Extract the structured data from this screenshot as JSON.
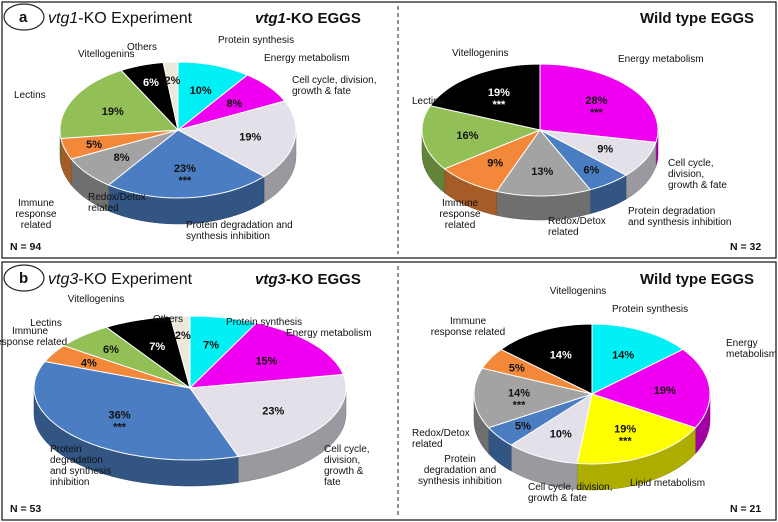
{
  "panels": [
    {
      "letter": "a",
      "experiment_italic": "vtg1",
      "experiment_rest": "-KO Experiment",
      "charts_title_left_italic": "vtg1",
      "charts_title_left_rest": "-KO EGGS",
      "charts_title_right": "Wild type  EGGS",
      "n_left": "N = 94",
      "n_right": "N = 32"
    },
    {
      "letter": "b",
      "experiment_italic": "vtg3",
      "experiment_rest": "-KO Experiment",
      "charts_title_left_italic": "vtg3",
      "charts_title_left_rest": "-KO EGGS",
      "charts_title_right": "Wild type  EGGS",
      "n_left": "N = 53",
      "n_right": "N = 21"
    }
  ],
  "colors": {
    "protein_synthesis": "#00f0f5",
    "energy_metabolism": "#f000f0",
    "cell_cycle": "#e4e0ea",
    "protein_degradation": "#4a7dc2",
    "redox_detox": "#a3a3a3",
    "immune": "#f3883a",
    "lectins": "#92bf56",
    "vitellogenins": "#000000",
    "others": "#ece9da",
    "lipid_metabolism": "#ffff00"
  },
  "chart_data": [
    {
      "type": "pie",
      "title": "vtg1-KO EGGS",
      "slices": [
        {
          "key": "protein_synthesis",
          "value": 10,
          "label": "10%",
          "category": "Protein synthesis"
        },
        {
          "key": "energy_metabolism",
          "value": 8,
          "label": "8%",
          "category": "Energy metabolism"
        },
        {
          "key": "cell_cycle",
          "value": 19,
          "label": "19%",
          "category": "Cell cycle, division, growth & fate"
        },
        {
          "key": "protein_degradation",
          "value": 23,
          "label": "23%",
          "mark": "***",
          "category": "Protein degradation and synthesis inhibition"
        },
        {
          "key": "redox_detox",
          "value": 8,
          "label": "8%",
          "category": "Redox/Detox related"
        },
        {
          "key": "immune",
          "value": 5,
          "label": "5%",
          "category": "Immune response related"
        },
        {
          "key": "lectins",
          "value": 19,
          "label": "19%",
          "category": "Lectins"
        },
        {
          "key": "vitellogenins",
          "value": 6,
          "label": "6%",
          "category": "Vitellogenins"
        },
        {
          "key": "others",
          "value": 2,
          "label": "2%",
          "category": "Others"
        }
      ]
    },
    {
      "type": "pie",
      "title": "Wild type  EGGS",
      "slices": [
        {
          "key": "energy_metabolism",
          "value": 28,
          "label": "28%",
          "mark": "***",
          "category": "Energy metabolism"
        },
        {
          "key": "cell_cycle",
          "value": 9,
          "label": "9%",
          "category": "Cell cycle, division, growth & fate"
        },
        {
          "key": "protein_degradation",
          "value": 6,
          "label": "6%",
          "category": "Protein degradation and synthesis inhibition"
        },
        {
          "key": "redox_detox",
          "value": 13,
          "label": "13%",
          "category": "Redox/Detox related"
        },
        {
          "key": "immune",
          "value": 9,
          "label": "9%",
          "category": "Immune response related"
        },
        {
          "key": "lectins",
          "value": 16,
          "label": "16%",
          "category": "Lectins"
        },
        {
          "key": "vitellogenins",
          "value": 19,
          "label": "19%",
          "mark": "***",
          "category": "Vitellogenins"
        }
      ]
    },
    {
      "type": "pie",
      "title": "vtg3-KO EGGS",
      "slices": [
        {
          "key": "protein_synthesis",
          "value": 7,
          "label": "7%",
          "category": "Protein synthesis"
        },
        {
          "key": "energy_metabolism",
          "value": 15,
          "label": "15%",
          "category": "Energy metabolism"
        },
        {
          "key": "cell_cycle",
          "value": 23,
          "label": "23%",
          "category": "Cell cycle, division, growth & fate"
        },
        {
          "key": "protein_degradation",
          "value": 36,
          "label": "36%",
          "mark": "***",
          "category": "Protein degradation and synthesis inhibition"
        },
        {
          "key": "immune",
          "value": 4,
          "label": "4%",
          "category": "Immune response related"
        },
        {
          "key": "lectins",
          "value": 6,
          "label": "6%",
          "category": "Lectins"
        },
        {
          "key": "vitellogenins",
          "value": 7,
          "label": "7%",
          "category": "Vitellogenins"
        },
        {
          "key": "others",
          "value": 2,
          "label": "2%",
          "category": "Others"
        }
      ]
    },
    {
      "type": "pie",
      "title": "Wild type  EGGS",
      "slices": [
        {
          "key": "protein_synthesis",
          "value": 14,
          "label": "14%",
          "category": "Protein synthesis"
        },
        {
          "key": "energy_metabolism",
          "value": 19,
          "label": "19%",
          "category": "Energy metabolism"
        },
        {
          "key": "lipid_metabolism",
          "value": 19,
          "label": "19%",
          "mark": "***",
          "category": "Lipid metabolism"
        },
        {
          "key": "cell_cycle",
          "value": 10,
          "label": "10%",
          "category": "Cell cycle, division, growth & fate"
        },
        {
          "key": "protein_degradation",
          "value": 5,
          "label": "5%",
          "category": "Protein degradation and synthesis inhibition"
        },
        {
          "key": "redox_detox",
          "value": 14,
          "label": "14%",
          "mark": "***",
          "category": "Redox/Detox related"
        },
        {
          "key": "immune",
          "value": 5,
          "label": "5%",
          "category": "Immune response related"
        },
        {
          "key": "vitellogenins",
          "value": 14,
          "label": "14%",
          "category": "Vitellogenins"
        }
      ]
    }
  ],
  "category_labels": [
    {
      "chart": 0,
      "lines": [
        "Protein synthesis"
      ]
    },
    {
      "chart": 0,
      "lines": [
        "Energy metabolism"
      ]
    },
    {
      "chart": 0,
      "lines": [
        "Cell cycle, division,",
        "growth & fate"
      ]
    },
    {
      "chart": 0,
      "lines": [
        "Protein degradation and",
        "synthesis inhibition"
      ]
    },
    {
      "chart": 0,
      "lines": [
        "Redox/Detox",
        "related"
      ]
    },
    {
      "chart": 0,
      "lines": [
        "Immune",
        "response",
        "related"
      ]
    },
    {
      "chart": 0,
      "lines": [
        "Lectins"
      ]
    },
    {
      "chart": 0,
      "lines": [
        "Vitellogenins"
      ]
    },
    {
      "chart": 0,
      "lines": [
        "Others"
      ]
    },
    {
      "chart": 1,
      "lines": [
        "Vitellogenins"
      ]
    },
    {
      "chart": 1,
      "lines": [
        "Energy metabolism"
      ]
    },
    {
      "chart": 1,
      "lines": [
        "Lectins"
      ]
    },
    {
      "chart": 1,
      "lines": [
        "Cell cycle,",
        "division,",
        "growth & fate"
      ]
    },
    {
      "chart": 1,
      "lines": [
        "Protein degradation",
        "and synthesis inhibition"
      ]
    },
    {
      "chart": 1,
      "lines": [
        "Redox/Detox",
        "related"
      ]
    },
    {
      "chart": 1,
      "lines": [
        "Immune",
        "response",
        "related"
      ]
    },
    {
      "chart": 2,
      "lines": [
        "Vitellogenins"
      ]
    },
    {
      "chart": 2,
      "lines": [
        "Lectins"
      ]
    },
    {
      "chart": 2,
      "lines": [
        "Immune",
        "response related"
      ]
    },
    {
      "chart": 2,
      "lines": [
        "Others"
      ]
    },
    {
      "chart": 2,
      "lines": [
        "Protein synthesis"
      ]
    },
    {
      "chart": 2,
      "lines": [
        "Energy metabolism"
      ]
    },
    {
      "chart": 2,
      "lines": [
        "Cell cycle,",
        "division,",
        "growth &",
        "fate"
      ]
    },
    {
      "chart": 2,
      "lines": [
        "Protein",
        "degradation",
        "and synthesis",
        "inhibition"
      ]
    },
    {
      "chart": 3,
      "lines": [
        "Vitellogenins"
      ]
    },
    {
      "chart": 3,
      "lines": [
        "Immune",
        "response related"
      ]
    },
    {
      "chart": 3,
      "lines": [
        "Protein synthesis"
      ]
    },
    {
      "chart": 3,
      "lines": [
        "Energy",
        "metabolism"
      ]
    },
    {
      "chart": 3,
      "lines": [
        "Redox/Detox",
        "related"
      ]
    },
    {
      "chart": 3,
      "lines": [
        "Protein",
        "degradation and",
        "synthesis inhibition"
      ]
    },
    {
      "chart": 3,
      "lines": [
        "Cell cycle, division,",
        "growth & fate"
      ]
    },
    {
      "chart": 3,
      "lines": [
        "Lipid metabolism"
      ]
    }
  ]
}
